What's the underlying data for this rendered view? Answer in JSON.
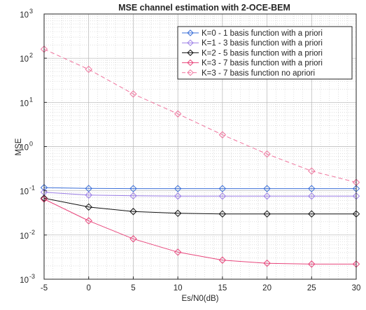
{
  "chart_data": {
    "type": "line",
    "title": "MSE channel estimation with 2-OCE-BEM",
    "xlabel": "Es/N0(dB)",
    "ylabel": "MSE",
    "xlim": [
      -5,
      30
    ],
    "ylim": [
      0.001,
      1000
    ],
    "yscale": "log",
    "grid": true,
    "minor_grid": true,
    "legend_position": "top-right",
    "x": [
      -5,
      0,
      5,
      10,
      15,
      20,
      25,
      30
    ],
    "x_tick_labels": [
      "-5",
      "0",
      "5",
      "10",
      "15",
      "20",
      "25",
      "30"
    ],
    "y_ticks": [
      {
        "value": 0.001,
        "base": "10",
        "exp": "-3"
      },
      {
        "value": 0.01,
        "base": "10",
        "exp": "-2"
      },
      {
        "value": 0.1,
        "base": "10",
        "exp": "-1"
      },
      {
        "value": 1,
        "base": "10",
        "exp": "0"
      },
      {
        "value": 10,
        "base": "10",
        "exp": "1"
      },
      {
        "value": 100,
        "base": "10",
        "exp": "2"
      },
      {
        "value": 1000,
        "base": "10",
        "exp": "3"
      }
    ],
    "series": [
      {
        "name": "K=0 - 1 basis function with a priori",
        "color": "#3b6fd8",
        "dash": "solid",
        "marker": "diamond",
        "values": [
          0.118,
          0.113,
          0.112,
          0.112,
          0.112,
          0.112,
          0.112,
          0.112
        ]
      },
      {
        "name": "K=1 - 3 basis function with a priori",
        "color": "#9b7ee6",
        "dash": "solid",
        "marker": "diamond",
        "values": [
          0.093,
          0.08,
          0.077,
          0.076,
          0.076,
          0.076,
          0.076,
          0.076
        ]
      },
      {
        "name": "K=2 - 5 basis function with a priori",
        "color": "#111111",
        "dash": "solid",
        "marker": "diamond",
        "values": [
          0.068,
          0.043,
          0.034,
          0.031,
          0.03,
          0.03,
          0.03,
          0.03
        ]
      },
      {
        "name": "K=3 - 7 basis function with a priori",
        "color": "#e8467c",
        "dash": "solid",
        "marker": "diamond",
        "values": [
          0.065,
          0.021,
          0.0082,
          0.0041,
          0.0027,
          0.0023,
          0.0022,
          0.0022
        ]
      },
      {
        "name": "K=3 - 7 basis function no apriori",
        "color": "#f0739d",
        "dash": "dashed",
        "marker": "diamond",
        "values": [
          160,
          56,
          15.5,
          5.5,
          1.85,
          0.68,
          0.28,
          0.155
        ]
      }
    ]
  }
}
